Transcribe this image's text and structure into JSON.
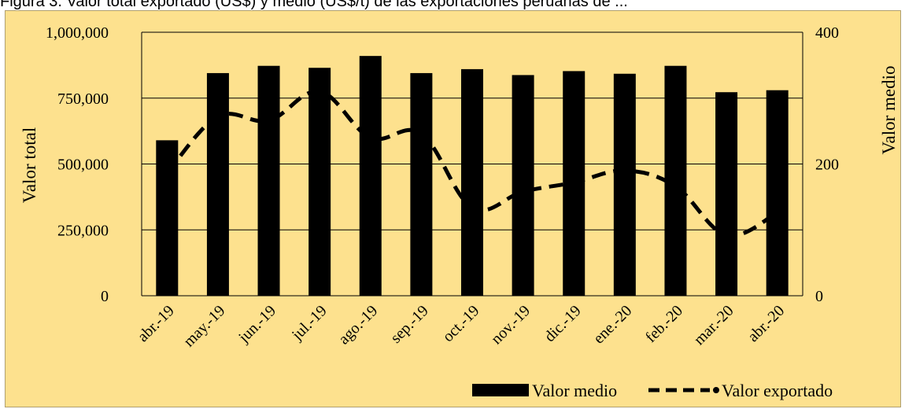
{
  "caption": "Figura 3. Valor total exportado (US$) y medio (US$/t) de las exportaciones peruanas de ...",
  "chart_data": {
    "type": "bar+line",
    "categories": [
      "abr.-19",
      "may.-19",
      "jun.-19",
      "jul.-19",
      "ago.-19",
      "sep.-19",
      "oct.-19",
      "nov.-19",
      "dic.-19",
      "ene.-20",
      "feb.-20",
      "mar.-20",
      "abr.-20"
    ],
    "series": [
      {
        "name": "Valor medio",
        "type": "bar",
        "axis": "right",
        "values": [
          236,
          338,
          349,
          346,
          364,
          338,
          344,
          335,
          341,
          337,
          349,
          309,
          312
        ]
      },
      {
        "name": "Valor exportado",
        "type": "line",
        "style": "dashed",
        "axis": "left",
        "values": [
          465000,
          680000,
          665000,
          775000,
          600000,
          615000,
          335000,
          395000,
          430000,
          475000,
          415000,
          230000,
          315000
        ]
      }
    ],
    "y_left": {
      "label": "Valor total",
      "lim": [
        0,
        1000000
      ],
      "ticks": [
        "0",
        "250,000",
        "500,000",
        "750,000",
        "1,000,000"
      ]
    },
    "y_right": {
      "label": "Valor medio",
      "lim": [
        0,
        400
      ],
      "ticks": [
        "0",
        "200",
        "400"
      ]
    },
    "legend": "bottom-right",
    "grid": true,
    "colors": {
      "background": "#fde18e",
      "bars": "#000000",
      "line": "#000000",
      "grid": "#000000"
    }
  }
}
